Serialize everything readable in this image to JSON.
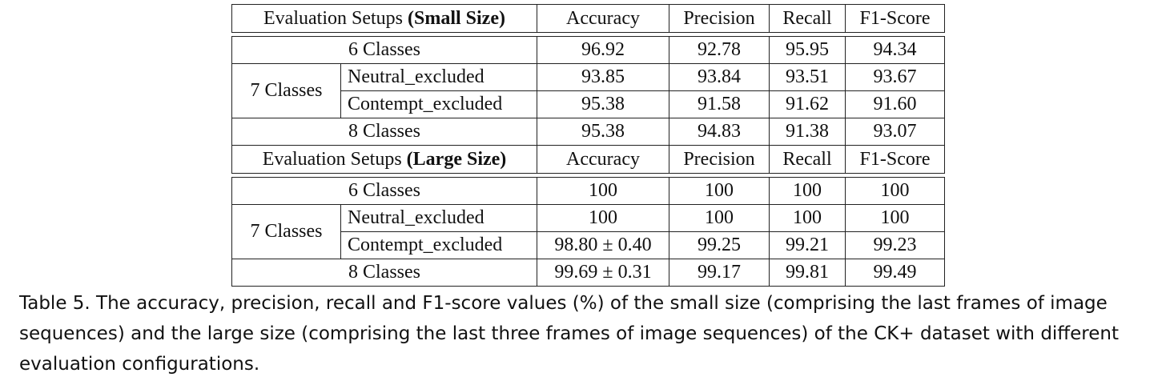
{
  "tables": [
    {
      "header": {
        "setup_prefix": "Evaluation Setups ",
        "setup_bold": "(Small Size)",
        "cols": [
          "Accuracy",
          "Precision",
          "Recall",
          "F1-Score"
        ]
      },
      "rows": {
        "c6": {
          "label": "6 Classes",
          "values": [
            "96.92",
            "92.78",
            "95.95",
            "94.34"
          ]
        },
        "c7": {
          "label": "7 Classes",
          "neutral": {
            "label": "Neutral_excluded",
            "values": [
              "93.85",
              "93.84",
              "93.51",
              "93.67"
            ]
          },
          "contempt": {
            "label": "Contempt_excluded",
            "values": [
              "95.38",
              "91.58",
              "91.62",
              "91.60"
            ]
          }
        },
        "c8": {
          "label": "8 Classes",
          "values": [
            "95.38",
            "94.83",
            "91.38",
            "93.07"
          ]
        }
      }
    },
    {
      "header": {
        "setup_prefix": "Evaluation Setups ",
        "setup_bold": "(Large Size)",
        "cols": [
          "Accuracy",
          "Precision",
          "Recall",
          "F1-Score"
        ]
      },
      "rows": {
        "c6": {
          "label": "6 Classes",
          "values": [
            "100",
            "100",
            "100",
            "100"
          ]
        },
        "c7": {
          "label": "7 Classes",
          "neutral": {
            "label": "Neutral_excluded",
            "values": [
              "100",
              "100",
              "100",
              "100"
            ]
          },
          "contempt": {
            "label": "Contempt_excluded",
            "values": [
              "98.80 ± 0.40",
              "99.25",
              "99.21",
              "99.23"
            ]
          }
        },
        "c8": {
          "label": "8 Classes",
          "values": [
            "99.69 ± 0.31",
            "99.17",
            "99.81",
            "99.49"
          ]
        }
      }
    }
  ],
  "caption": "Table 5.  The accuracy, precision, recall and F1-score values (%) of the small size (comprising the last frames of image sequences) and the large size (comprising the last three frames of image sequences) of the CK+ dataset with different evaluation configurations."
}
